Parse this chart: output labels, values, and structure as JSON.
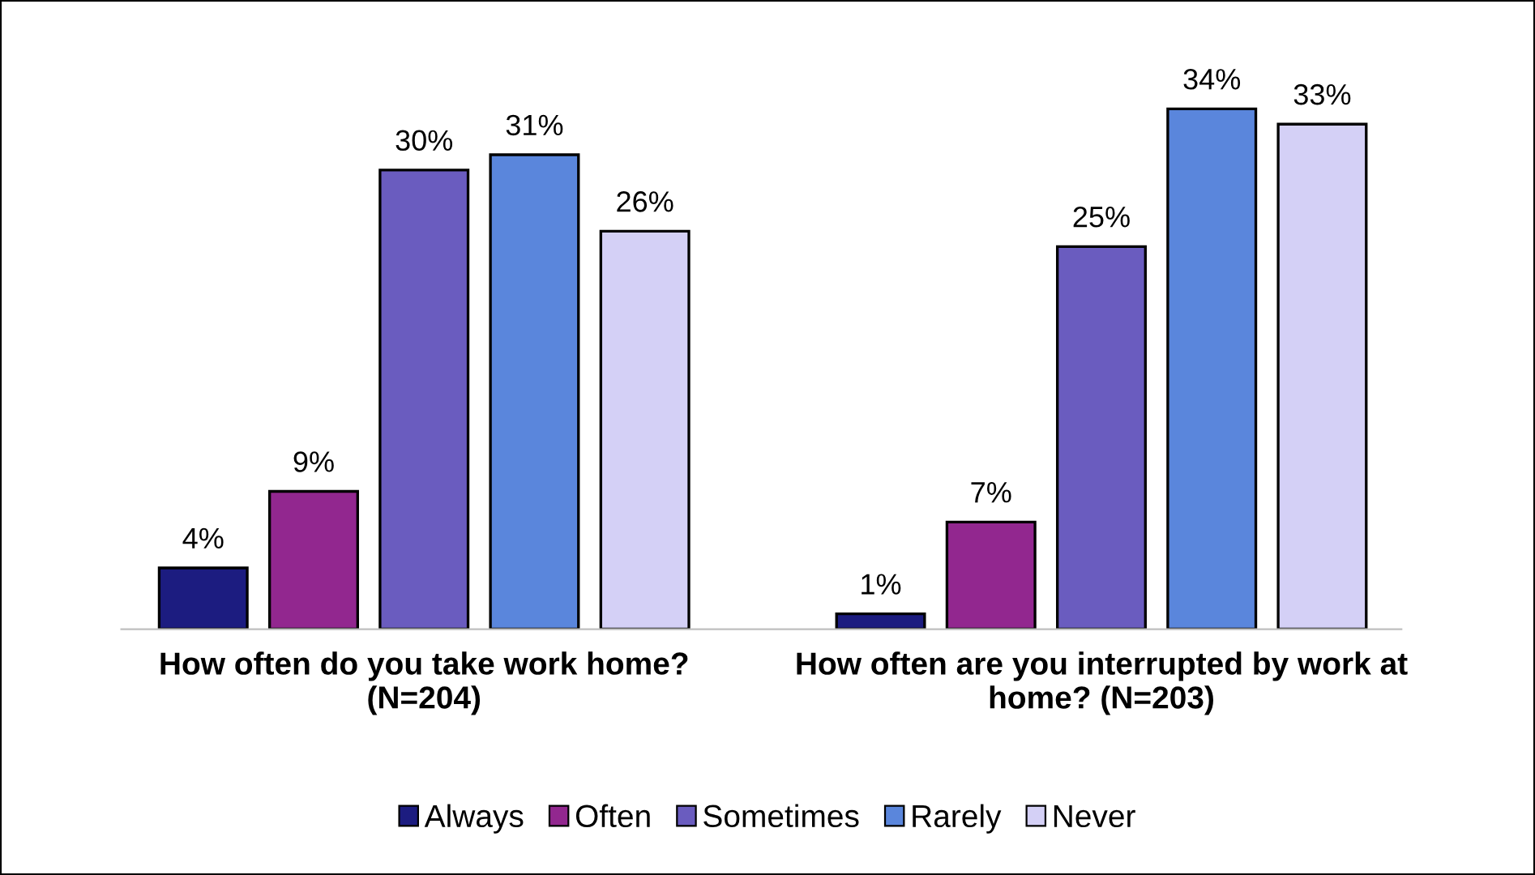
{
  "chart_data": {
    "type": "bar",
    "categories": [
      "How often do you take work home? (N=204)",
      "How often are you interrupted by work at home? (N=203)"
    ],
    "series": [
      {
        "name": "Always",
        "color": "#1c1c80",
        "values": [
          4,
          1
        ],
        "value_labels": [
          "4%",
          "1%"
        ]
      },
      {
        "name": "Often",
        "color": "#92278f",
        "values": [
          9,
          7
        ],
        "value_labels": [
          "9%",
          "7%"
        ]
      },
      {
        "name": "Sometimes",
        "color": "#6a5cbf",
        "values": [
          30,
          25
        ],
        "value_labels": [
          "30%",
          "25%"
        ]
      },
      {
        "name": "Rarely",
        "color": "#5a86dc",
        "values": [
          31,
          34
        ],
        "value_labels": [
          "31%",
          "34%"
        ]
      },
      {
        "name": "Never",
        "color": "#d4d0f6",
        "values": [
          26,
          33
        ],
        "value_labels": [
          "26%",
          "33%"
        ]
      }
    ],
    "legend": "bottom",
    "grid": false,
    "tick_labels": "x"
  }
}
